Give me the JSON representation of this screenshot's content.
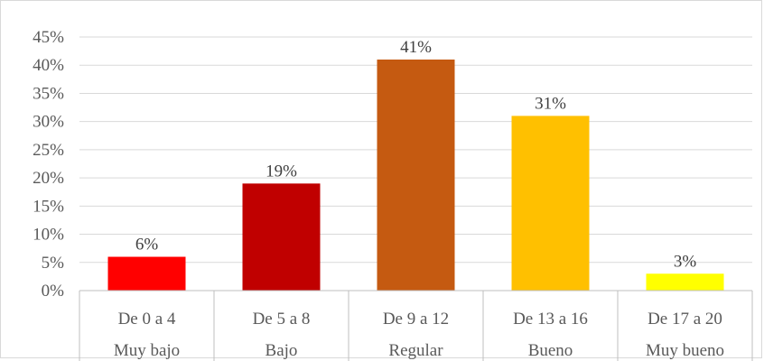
{
  "chart_data": {
    "type": "bar",
    "categories": [
      "De 0 a 4",
      "De 5 a 8",
      "De 9 a 12",
      "De 13 a 16",
      "De 17 a 20"
    ],
    "subcategories": [
      "Muy bajo",
      "Bajo",
      "Regular",
      "Bueno",
      "Muy bueno"
    ],
    "values": [
      0.06,
      0.19,
      0.41,
      0.31,
      0.03
    ],
    "value_labels": [
      "6%",
      "19%",
      "41%",
      "31%",
      "3%"
    ],
    "bar_colors": [
      "#ff0000",
      "#c00000",
      "#c55a11",
      "#ffc000",
      "#ffff00"
    ],
    "y_ticks": [
      "0%",
      "5%",
      "10%",
      "15%",
      "20%",
      "25%",
      "30%",
      "35%",
      "40%",
      "45%"
    ],
    "ylim": [
      0,
      0.45
    ],
    "grid": true,
    "legend": "none",
    "title": "",
    "xlabel": "",
    "ylabel": ""
  }
}
